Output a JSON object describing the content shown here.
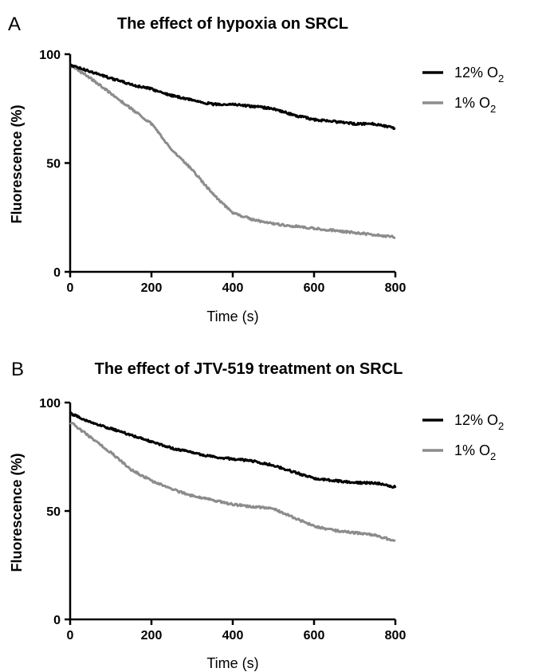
{
  "chart_data": [
    {
      "type": "line",
      "panel": "A",
      "title": "The effect of hypoxia on SRCL",
      "xlabel": "Time (s)",
      "ylabel": "Fluorescence  (%)",
      "xlim": [
        0,
        800
      ],
      "ylim": [
        0,
        100
      ],
      "xticks": [
        "0",
        "200",
        "400",
        "600",
        "800"
      ],
      "yticks": [
        "0",
        "50",
        "100"
      ],
      "legend_position": "top-right",
      "x": [
        0,
        50,
        100,
        150,
        200,
        250,
        300,
        350,
        400,
        450,
        500,
        550,
        600,
        650,
        700,
        750,
        800
      ],
      "series": [
        {
          "name": "12% O",
          "subscript": "2",
          "color": "#000000",
          "values": [
            95,
            92,
            89,
            86,
            84,
            81,
            79,
            77,
            77,
            76,
            75,
            72,
            70,
            69,
            68,
            68,
            66
          ]
        },
        {
          "name": "1% O",
          "subscript": "2",
          "color": "#8c8c8c",
          "values": [
            95,
            89,
            82,
            75,
            68,
            56,
            47,
            36,
            27,
            24,
            22,
            21,
            20,
            19,
            18,
            17,
            16
          ]
        }
      ]
    },
    {
      "type": "line",
      "panel": "B",
      "title": "The effect of JTV-519 treatment on SRCL",
      "xlabel": "Time (s)",
      "ylabel": "Fluorescence (%)",
      "xlim": [
        0,
        800
      ],
      "ylim": [
        0,
        100
      ],
      "xticks": [
        "0",
        "200",
        "400",
        "600",
        "800"
      ],
      "yticks": [
        "0",
        "50",
        "100"
      ],
      "legend_position": "top-right",
      "x": [
        0,
        50,
        100,
        150,
        200,
        250,
        300,
        350,
        400,
        450,
        500,
        550,
        600,
        650,
        700,
        750,
        800
      ],
      "series": [
        {
          "name": "12% O",
          "subscript": "2",
          "color": "#000000",
          "values": [
            95,
            91,
            88,
            85,
            82,
            79,
            77,
            75,
            74,
            73,
            71,
            68,
            65,
            64,
            63,
            63,
            61
          ]
        },
        {
          "name": "1% O",
          "subscript": "2",
          "color": "#8c8c8c",
          "values": [
            91,
            84,
            77,
            69,
            64,
            60,
            57,
            55,
            53,
            52,
            51,
            47,
            43,
            41,
            40,
            39,
            36
          ]
        }
      ]
    }
  ]
}
